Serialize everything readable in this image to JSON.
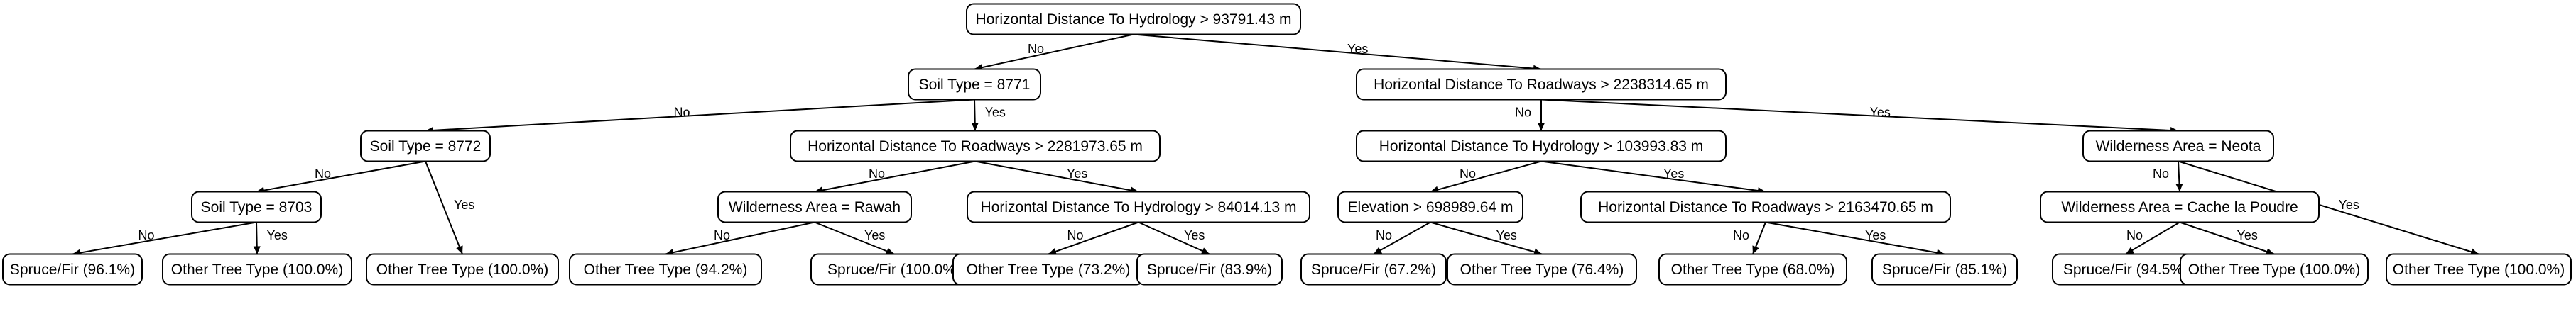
{
  "tree": {
    "edge_labels": {
      "no": "No",
      "yes": "Yes"
    },
    "nodes": [
      {
        "id": "n0",
        "label": "Horizontal Distance To Hydrology > 93791.43 m"
      },
      {
        "id": "n1",
        "label": "Soil Type = 8771"
      },
      {
        "id": "n2",
        "label": "Horizontal Distance To Roadways > 2238314.65 m"
      },
      {
        "id": "n3",
        "label": "Soil Type = 8772"
      },
      {
        "id": "n4",
        "label": "Horizontal Distance To Roadways > 2281973.65 m"
      },
      {
        "id": "n5",
        "label": "Horizontal Distance To Hydrology > 103993.83 m"
      },
      {
        "id": "n6",
        "label": "Wilderness Area = Neota"
      },
      {
        "id": "n7",
        "label": "Soil Type = 8703"
      },
      {
        "id": "n8",
        "label": "Other Tree Type (100.0%)"
      },
      {
        "id": "n9",
        "label": "Wilderness Area = Rawah"
      },
      {
        "id": "n10",
        "label": "Horizontal Distance To Hydrology > 84014.13 m"
      },
      {
        "id": "n11",
        "label": "Elevation > 698989.64 m"
      },
      {
        "id": "n12",
        "label": "Horizontal Distance To Roadways > 2163470.65 m"
      },
      {
        "id": "n13",
        "label": "Wilderness Area = Cache la Poudre"
      },
      {
        "id": "n14",
        "label": "Other Tree Type (100.0%)"
      },
      {
        "id": "n15",
        "label": "Spruce/Fir (96.1%)"
      },
      {
        "id": "n16",
        "label": "Other Tree Type (100.0%)"
      },
      {
        "id": "n17",
        "label": "Other Tree Type (94.2%)"
      },
      {
        "id": "n18",
        "label": "Spruce/Fir (100.0%)"
      },
      {
        "id": "n19",
        "label": "Other Tree Type (73.2%)"
      },
      {
        "id": "n20",
        "label": "Spruce/Fir (83.9%)"
      },
      {
        "id": "n21",
        "label": "Spruce/Fir (67.2%)"
      },
      {
        "id": "n22",
        "label": "Other Tree Type (76.4%)"
      },
      {
        "id": "n23",
        "label": "Other Tree Type (68.0%)"
      },
      {
        "id": "n24",
        "label": "Spruce/Fir (85.1%)"
      },
      {
        "id": "n25",
        "label": "Spruce/Fir (94.5%)"
      },
      {
        "id": "n26",
        "label": "Other Tree Type (100.0%)"
      }
    ],
    "edges": [
      {
        "from": "n0",
        "to": "n1",
        "kind": "no"
      },
      {
        "from": "n0",
        "to": "n2",
        "kind": "yes"
      },
      {
        "from": "n1",
        "to": "n3",
        "kind": "no"
      },
      {
        "from": "n1",
        "to": "n4",
        "kind": "yes"
      },
      {
        "from": "n2",
        "to": "n5",
        "kind": "no"
      },
      {
        "from": "n2",
        "to": "n6",
        "kind": "yes"
      },
      {
        "from": "n3",
        "to": "n7",
        "kind": "no"
      },
      {
        "from": "n3",
        "to": "n8",
        "kind": "yes"
      },
      {
        "from": "n4",
        "to": "n9",
        "kind": "no"
      },
      {
        "from": "n4",
        "to": "n10",
        "kind": "yes"
      },
      {
        "from": "n5",
        "to": "n11",
        "kind": "no"
      },
      {
        "from": "n5",
        "to": "n12",
        "kind": "yes"
      },
      {
        "from": "n6",
        "to": "n13",
        "kind": "no"
      },
      {
        "from": "n6",
        "to": "n14",
        "kind": "yes"
      },
      {
        "from": "n7",
        "to": "n15",
        "kind": "no"
      },
      {
        "from": "n7",
        "to": "n16",
        "kind": "yes"
      },
      {
        "from": "n9",
        "to": "n17",
        "kind": "no"
      },
      {
        "from": "n9",
        "to": "n18",
        "kind": "yes"
      },
      {
        "from": "n10",
        "to": "n19",
        "kind": "no"
      },
      {
        "from": "n10",
        "to": "n20",
        "kind": "yes"
      },
      {
        "from": "n11",
        "to": "n21",
        "kind": "no"
      },
      {
        "from": "n11",
        "to": "n22",
        "kind": "yes"
      },
      {
        "from": "n12",
        "to": "n23",
        "kind": "no"
      },
      {
        "from": "n12",
        "to": "n24",
        "kind": "yes"
      },
      {
        "from": "n13",
        "to": "n25",
        "kind": "no"
      },
      {
        "from": "n13",
        "to": "n26",
        "kind": "yes"
      }
    ]
  }
}
